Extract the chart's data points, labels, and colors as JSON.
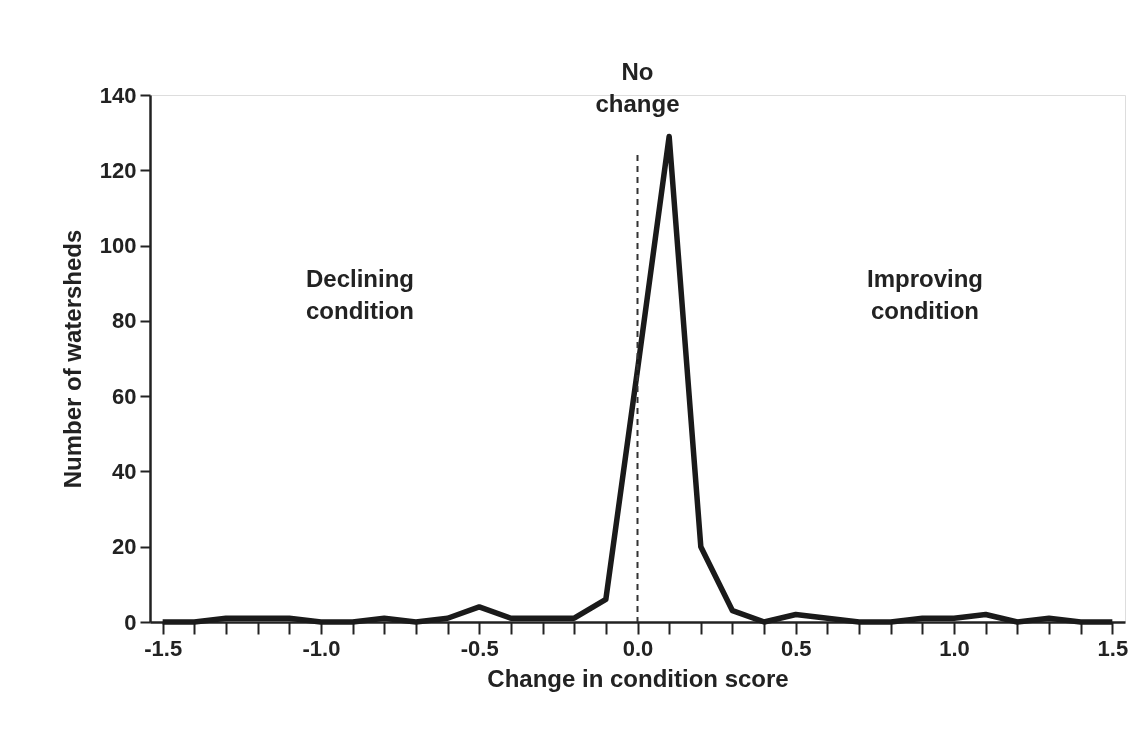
{
  "chart_data": {
    "type": "line",
    "xlabel": "Change in condition score",
    "ylabel": "Number of watersheds",
    "x": [
      -1.5,
      -1.4,
      -1.3,
      -1.2,
      -1.1,
      -1.0,
      -0.9,
      -0.8,
      -0.7,
      -0.6,
      -0.5,
      -0.4,
      -0.3,
      -0.2,
      -0.1,
      0.0,
      0.1,
      0.2,
      0.3,
      0.4,
      0.5,
      0.6,
      0.7,
      0.8,
      0.9,
      1.0,
      1.1,
      1.2,
      1.3,
      1.4,
      1.5
    ],
    "series": [
      {
        "color": "#1a1a1a",
        "values": [
          0,
          0,
          1,
          1,
          1,
          0,
          0,
          1,
          0,
          1,
          4,
          1,
          1,
          1,
          6,
          67,
          129,
          20,
          3,
          0,
          2,
          1,
          0,
          0,
          1,
          1,
          2,
          0,
          1,
          0,
          0
        ]
      }
    ],
    "xlim": [
      -1.54,
      1.54
    ],
    "ylim": [
      0,
      140
    ],
    "xticks": [
      -1.5,
      {
        "value": -1.4,
        "label": null
      },
      {
        "value": -1.3,
        "label": null
      },
      {
        "value": -1.2,
        "label": null
      },
      {
        "value": -1.1,
        "label": null
      },
      {
        "value": -1.0,
        "label": "-1.0"
      },
      {
        "value": -0.9,
        "label": null
      },
      {
        "value": -0.8,
        "label": null
      },
      {
        "value": -0.7,
        "label": null
      },
      {
        "value": -0.6,
        "label": null
      },
      -0.5,
      {
        "value": -0.4,
        "label": null
      },
      {
        "value": -0.3,
        "label": null
      },
      {
        "value": -0.2,
        "label": null
      },
      {
        "value": -0.1,
        "label": null
      },
      {
        "value": 0.0,
        "label": "0.0"
      },
      {
        "value": 0.1,
        "label": null
      },
      {
        "value": 0.2,
        "label": null
      },
      {
        "value": 0.3,
        "label": null
      },
      {
        "value": 0.4,
        "label": null
      },
      0.5,
      {
        "value": 0.6,
        "label": null
      },
      {
        "value": 0.7,
        "label": null
      },
      {
        "value": 0.8,
        "label": null
      },
      {
        "value": 0.9,
        "label": null
      },
      {
        "value": 1.0,
        "label": "1.0"
      },
      {
        "value": 1.1,
        "label": null
      },
      {
        "value": 1.2,
        "label": null
      },
      {
        "value": 1.3,
        "label": null
      },
      {
        "value": 1.4,
        "label": null
      },
      1.5
    ],
    "yticks": [
      0,
      20,
      40,
      60,
      80,
      100,
      120,
      140
    ],
    "ref_lines": [
      {
        "axis": "x",
        "value": 0,
        "label": "No change",
        "line_style": "dashed",
        "color": "#333333"
      }
    ],
    "annotations": [
      "Declining condition",
      "Improving condition"
    ],
    "grid": false,
    "marker": "none",
    "line_style": "solid"
  }
}
